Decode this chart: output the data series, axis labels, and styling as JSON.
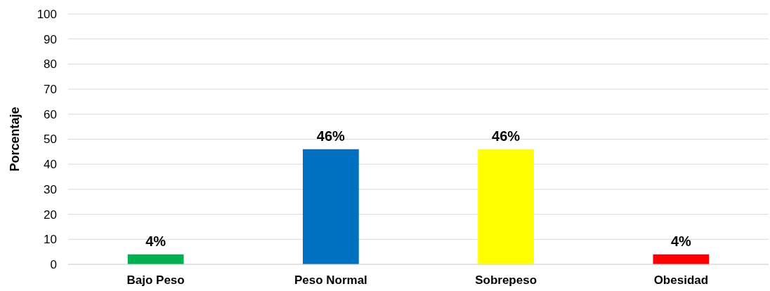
{
  "chart_data": {
    "type": "bar",
    "ylabel": "Porcentaje",
    "categories": [
      "Bajo Peso",
      "Peso Normal",
      "Sobrepeso",
      "Obesidad"
    ],
    "values": [
      4,
      46,
      46,
      4
    ],
    "colors": [
      "#00b050",
      "#0070c0",
      "#ffff00",
      "#ff0000"
    ],
    "value_labels": [
      "4%",
      "46%",
      "46%",
      "4%"
    ],
    "ylim": [
      0,
      100
    ],
    "yticks": [
      0,
      10,
      20,
      30,
      40,
      50,
      60,
      70,
      80,
      90,
      100
    ],
    "grid": "y"
  }
}
